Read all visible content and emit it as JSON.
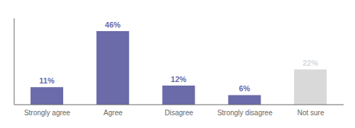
{
  "chart_data": {
    "type": "bar",
    "categories": [
      "Strongly agree",
      "Agree",
      "Disagree",
      "Strongly disagree",
      "Not sure"
    ],
    "values": [
      11,
      46,
      12,
      6,
      22
    ],
    "value_labels": [
      "11%",
      "46%",
      "12%",
      "6%",
      "22%"
    ],
    "data_labels": true,
    "colors": [
      "#6b6baa",
      "#6b6baa",
      "#6b6baa",
      "#6b6baa",
      "#d9d9d9"
    ],
    "ylim": [
      0,
      54
    ],
    "tick_labels": "x",
    "grid": false
  }
}
